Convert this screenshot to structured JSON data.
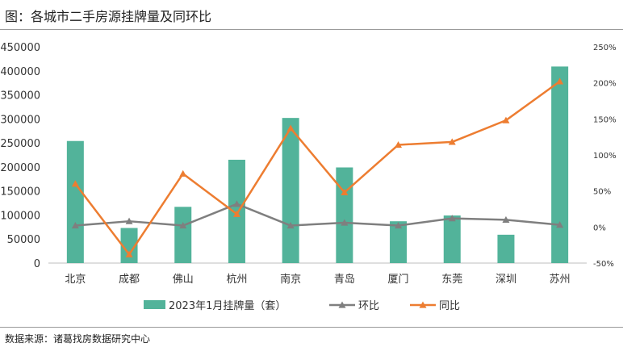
{
  "title": "图：各城市二手房源挂牌量及同环比",
  "source": "数据来源：诸葛找房数据研究中心",
  "colors": {
    "bar": "#52b39a",
    "mom": "#7f7f7f",
    "yoy": "#ed7d31",
    "axis": "#bfbfbf",
    "text": "#333333"
  },
  "chart_data": {
    "type": "bar",
    "categories": [
      "北京",
      "成都",
      "佛山",
      "杭州",
      "南京",
      "青岛",
      "厦门",
      "东莞",
      "深圳",
      "苏州"
    ],
    "y_left": {
      "lim": [
        0,
        450000
      ],
      "ticks": [
        0,
        50000,
        100000,
        150000,
        200000,
        250000,
        300000,
        350000,
        400000,
        450000
      ],
      "tick_labels": [
        "0",
        "50000",
        "100000",
        "150000",
        "200000",
        "250000",
        "300000",
        "350000",
        "400000",
        "450000"
      ]
    },
    "y_right": {
      "lim": [
        -50,
        250
      ],
      "ticks": [
        -50,
        0,
        50,
        100,
        150,
        200,
        250
      ],
      "tick_labels": [
        "-50%",
        "0%",
        "50%",
        "100%",
        "150%",
        "200%",
        "250%"
      ]
    },
    "legend_position": "bottom",
    "series": [
      {
        "name": "2023年1月挂牌量（套）",
        "type": "bar",
        "axis": "left",
        "values": [
          254000,
          73000,
          117000,
          215000,
          302000,
          199000,
          87000,
          99000,
          59000,
          409000
        ]
      },
      {
        "name": "环比",
        "type": "line",
        "axis": "right",
        "marker": "triangle",
        "values": [
          2,
          8,
          2,
          32,
          2,
          6,
          2,
          12,
          10,
          3
        ]
      },
      {
        "name": "同比",
        "type": "line",
        "axis": "right",
        "marker": "triangle",
        "values": [
          60,
          -38,
          74,
          18,
          137,
          48,
          114,
          118,
          148,
          202
        ]
      }
    ]
  }
}
